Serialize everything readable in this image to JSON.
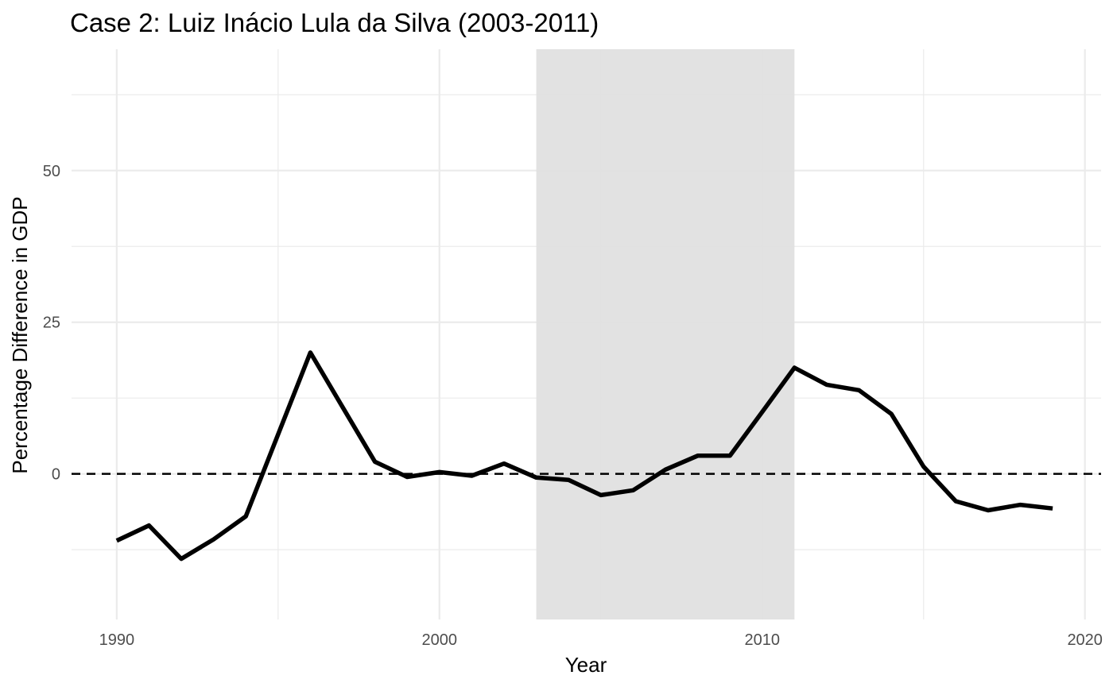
{
  "chart_data": {
    "type": "line",
    "title": "Case 2: Luiz Inácio Lula da Silva (2003-2011)",
    "xlabel": "Year",
    "ylabel": "Percentage Difference in GDP",
    "xlim": [
      1988.6,
      2020.5
    ],
    "ylim": [
      -24,
      70
    ],
    "x_ticks": [
      1990,
      2000,
      2010,
      2020
    ],
    "x_tick_labels": [
      "1990",
      "2000",
      "2010",
      "2020"
    ],
    "y_ticks": [
      0,
      25,
      50
    ],
    "y_tick_labels": [
      "0",
      "25",
      "50"
    ],
    "grid": true,
    "reference_line": {
      "y": 0,
      "style": "dashed",
      "color": "#000000"
    },
    "shaded_region": {
      "x": [
        2003,
        2011
      ],
      "color": "#e0e0e0"
    },
    "series": [
      {
        "color": "#000000",
        "x": [
          1990,
          1991,
          1992,
          1993,
          1994,
          1995,
          1996,
          1997,
          1998,
          1999,
          2000,
          2001,
          2002,
          2003,
          2004,
          2005,
          2006,
          2007,
          2008,
          2009,
          2010,
          2011,
          2012,
          2013,
          2014,
          2015,
          2016,
          2017,
          2018,
          2019
        ],
        "values": [
          -11,
          -8.5,
          -14,
          -10.8,
          -7,
          6.5,
          20,
          11,
          2,
          -0.5,
          0.3,
          -0.3,
          1.7,
          -0.6,
          -1,
          -3.5,
          -2.7,
          0.7,
          3,
          3,
          10.2,
          17.5,
          14.7,
          13.8,
          9.9,
          1.2,
          -4.5,
          -6,
          -5.1,
          -5.7
        ]
      }
    ]
  }
}
